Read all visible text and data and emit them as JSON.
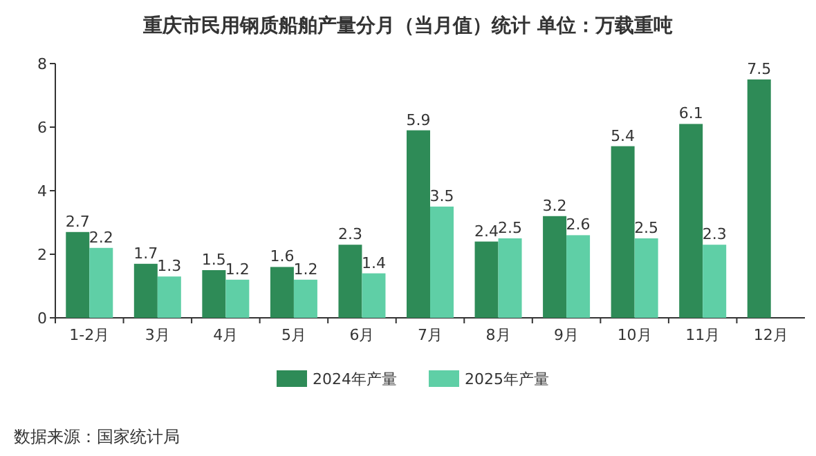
{
  "chart_data": {
    "type": "bar",
    "title": "重庆市民用钢质船舶产量分月（当月值）统计 单位：万载重吨",
    "categories": [
      "1-2月",
      "3月",
      "4月",
      "5月",
      "6月",
      "7月",
      "8月",
      "9月",
      "10月",
      "11月",
      "12月"
    ],
    "series": [
      {
        "name": "2024年产量",
        "color": "#2e8b57",
        "values": [
          2.7,
          1.7,
          1.5,
          1.6,
          2.3,
          5.9,
          2.4,
          3.2,
          5.4,
          6.1,
          7.5
        ]
      },
      {
        "name": "2025年产量",
        "color": "#5fcfa6",
        "values": [
          2.2,
          1.3,
          1.2,
          1.2,
          1.4,
          3.5,
          2.5,
          2.6,
          2.5,
          2.3,
          null
        ]
      }
    ],
    "ylim": [
      0,
      8
    ],
    "yticks": [
      0,
      2,
      4,
      6,
      8
    ],
    "legend": "bottom",
    "data_labels": true,
    "annotations": [
      "数据来源：国家统计局"
    ]
  }
}
